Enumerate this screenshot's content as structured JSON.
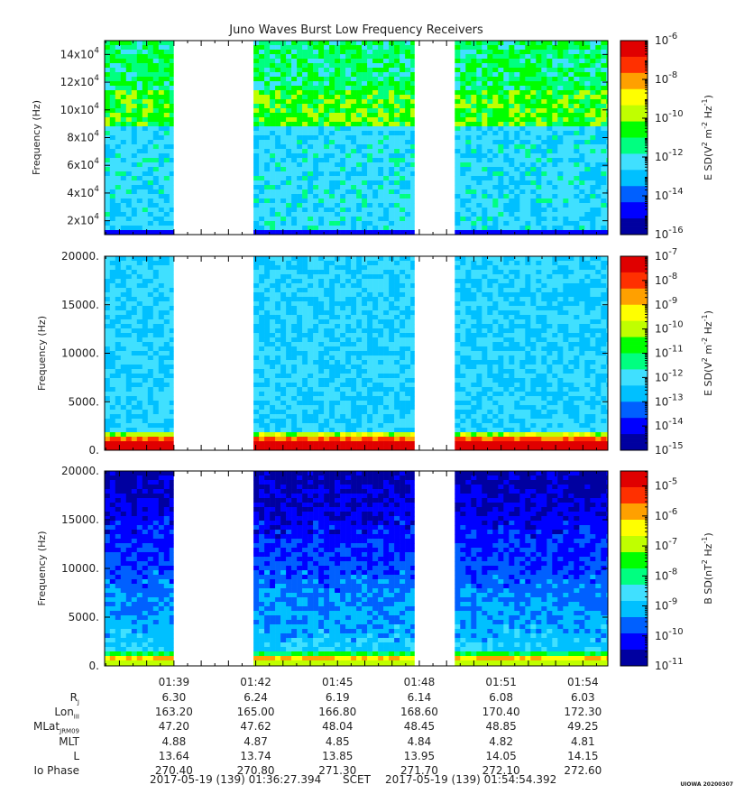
{
  "title": "Juno Waves Burst Low Frequency Receivers",
  "chart_data": [
    {
      "type": "heatmap",
      "title": "Juno Waves Burst Low Frequency Receivers",
      "ylabel": "Frequency (Hz)",
      "ylim": [
        10000,
        150000
      ],
      "yticks": [
        {
          "value": 20000,
          "mantissa": "2x10",
          "exp": "4"
        },
        {
          "value": 40000,
          "mantissa": "4x10",
          "exp": "4"
        },
        {
          "value": 60000,
          "mantissa": "6x10",
          "exp": "4"
        },
        {
          "value": 80000,
          "mantissa": "8x10",
          "exp": "4"
        },
        {
          "value": 100000,
          "mantissa": "10x10",
          "exp": "4"
        },
        {
          "value": 120000,
          "mantissa": "12x10",
          "exp": "4"
        },
        {
          "value": 140000,
          "mantissa": "14x10",
          "exp": "4"
        }
      ],
      "colorbar": {
        "label_main": "E SD(V",
        "label_sup1": "2",
        "label_mid": " m",
        "label_sup2": "-2",
        "label_end": " Hz",
        "label_sup3": "-1",
        "label_close": ")",
        "scale": "log",
        "range_exp": [
          -16,
          -6
        ],
        "ticks": [
          {
            "base": "10",
            "exp": "-6"
          },
          {
            "base": "10",
            "exp": "-8"
          },
          {
            "base": "10",
            "exp": "-10"
          },
          {
            "base": "10",
            "exp": "-12"
          },
          {
            "base": "10",
            "exp": "-14"
          },
          {
            "base": "10",
            "exp": "-16"
          }
        ]
      },
      "data_intervals": [
        [
          "01:36:27",
          "01:38:59"
        ],
        [
          "01:41:55",
          "01:47:49"
        ],
        [
          "01:49:18",
          "01:54:54"
        ]
      ]
    },
    {
      "type": "heatmap",
      "ylabel": "Frequency (Hz)",
      "ylim": [
        0,
        20000
      ],
      "yticks": [
        {
          "value": 0,
          "label": "0."
        },
        {
          "value": 5000,
          "label": "5000."
        },
        {
          "value": 10000,
          "label": "10000."
        },
        {
          "value": 15000,
          "label": "15000."
        },
        {
          "value": 20000,
          "label": "20000."
        }
      ],
      "colorbar": {
        "label_main": "E SD(V",
        "label_sup1": "2",
        "label_mid": " m",
        "label_sup2": "-2",
        "label_end": " Hz",
        "label_sup3": "-1",
        "label_close": ")",
        "scale": "log",
        "range_exp": [
          -15,
          -7
        ],
        "ticks": [
          {
            "base": "10",
            "exp": "-7"
          },
          {
            "base": "10",
            "exp": "-8"
          },
          {
            "base": "10",
            "exp": "-9"
          },
          {
            "base": "10",
            "exp": "-10"
          },
          {
            "base": "10",
            "exp": "-11"
          },
          {
            "base": "10",
            "exp": "-12"
          },
          {
            "base": "10",
            "exp": "-13"
          },
          {
            "base": "10",
            "exp": "-14"
          },
          {
            "base": "10",
            "exp": "-15"
          }
        ]
      },
      "data_intervals": [
        [
          "01:36:27",
          "01:38:59"
        ],
        [
          "01:41:55",
          "01:47:49"
        ],
        [
          "01:49:18",
          "01:54:54"
        ]
      ]
    },
    {
      "type": "heatmap",
      "ylabel": "Frequency (Hz)",
      "ylim": [
        0,
        20000
      ],
      "yticks": [
        {
          "value": 0,
          "label": "0."
        },
        {
          "value": 5000,
          "label": "5000."
        },
        {
          "value": 10000,
          "label": "10000."
        },
        {
          "value": 15000,
          "label": "15000."
        },
        {
          "value": 20000,
          "label": "20000."
        }
      ],
      "colorbar": {
        "label_main": "B SD(nT",
        "label_sup1": "2",
        "label_mid": "",
        "label_sup2": "",
        "label_end": " Hz",
        "label_sup3": "-1",
        "label_close": ")",
        "scale": "log",
        "range_exp": [
          -11,
          -4.5
        ],
        "ticks": [
          {
            "base": "10",
            "exp": "-5"
          },
          {
            "base": "10",
            "exp": "-6"
          },
          {
            "base": "10",
            "exp": "-7"
          },
          {
            "base": "10",
            "exp": "-8"
          },
          {
            "base": "10",
            "exp": "-9"
          },
          {
            "base": "10",
            "exp": "-10"
          },
          {
            "base": "10",
            "exp": "-11"
          }
        ]
      },
      "data_intervals": [
        [
          "01:36:27",
          "01:38:59"
        ],
        [
          "01:41:55",
          "01:47:49"
        ],
        [
          "01:49:18",
          "01:54:54"
        ]
      ]
    }
  ],
  "time_axis": {
    "start_minutes": 96.457,
    "end_minutes": 114.915,
    "ticks": [
      "01:39",
      "01:42",
      "01:45",
      "01:48",
      "01:51",
      "01:54"
    ],
    "tick_minutes": [
      99,
      102,
      105,
      108,
      111,
      114
    ]
  },
  "ephemeris": [
    {
      "label": "R",
      "sub": "J",
      "values": [
        "6.30",
        "6.24",
        "6.19",
        "6.14",
        "6.08",
        "6.03"
      ]
    },
    {
      "label": "Lon",
      "sub": "III",
      "values": [
        "163.20",
        "165.00",
        "166.80",
        "168.60",
        "170.40",
        "172.30"
      ]
    },
    {
      "label": "MLat",
      "sub": "JRM09",
      "values": [
        "47.20",
        "47.62",
        "48.04",
        "48.45",
        "48.85",
        "49.25"
      ]
    },
    {
      "label": "MLT",
      "sub": "",
      "values": [
        "4.88",
        "4.87",
        "4.85",
        "4.84",
        "4.82",
        "4.81"
      ]
    },
    {
      "label": "L",
      "sub": "",
      "values": [
        "13.64",
        "13.74",
        "13.85",
        "13.95",
        "14.05",
        "14.15"
      ]
    },
    {
      "label": "Io Phase",
      "sub": "",
      "values": [
        "270.40",
        "270.80",
        "271.30",
        "271.70",
        "272.10",
        "272.60"
      ]
    }
  ],
  "scet": {
    "start": "2017-05-19 (139) 01:36:27.394",
    "label": "SCET",
    "end": "2017-05-19 (139) 01:54:54.392"
  },
  "footer_tag": "UIOWA 20200307",
  "colors": {
    "background": "#ffffff",
    "frame": "#000000",
    "colormap": [
      "#0000a0",
      "#0000ff",
      "#0060ff",
      "#00c0ff",
      "#40e0ff",
      "#00ff80",
      "#00ff00",
      "#c0ff00",
      "#ffff00",
      "#ffa000",
      "#ff3000",
      "#e00000"
    ]
  }
}
